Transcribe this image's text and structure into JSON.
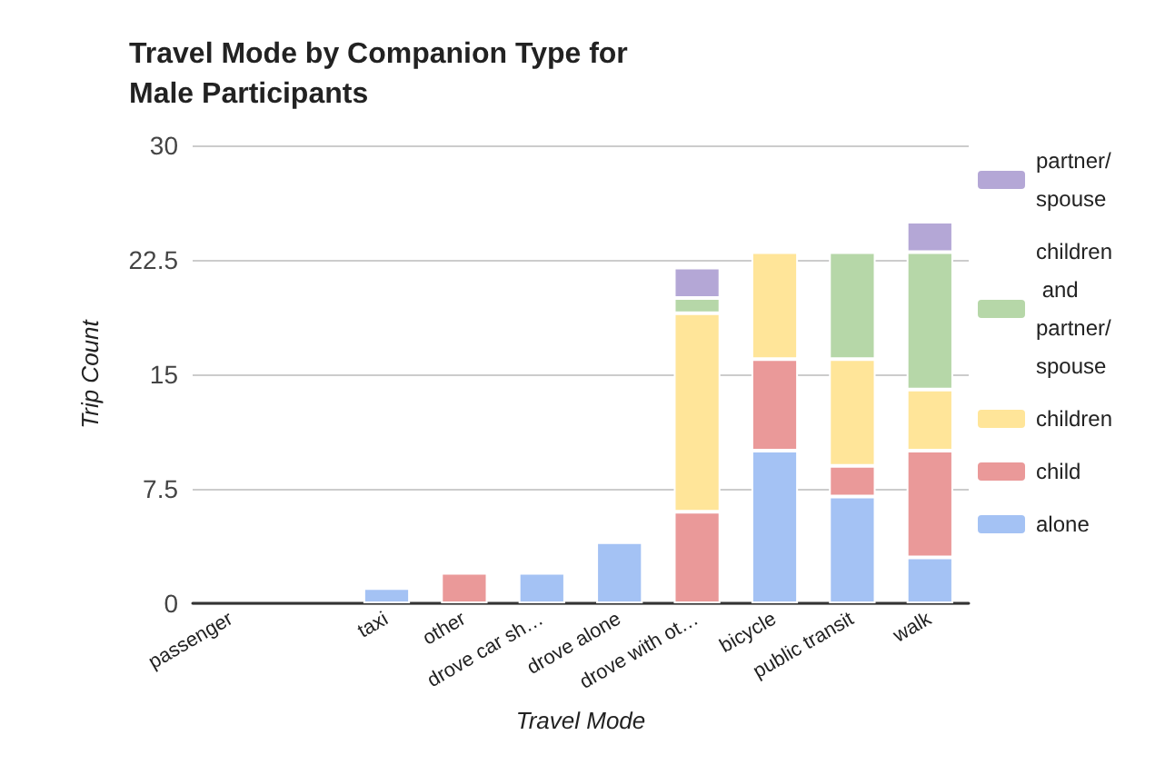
{
  "chart_data": {
    "type": "bar",
    "stacked": true,
    "title": "Travel Mode by Companion Type for Male Participants",
    "xlabel": "Travel Mode",
    "ylabel": "Trip Count",
    "categories": [
      "passenger",
      null,
      "taxi",
      "other",
      "drove car sh…",
      "drove alone",
      "drove with ot…",
      "bicycle",
      "public transit",
      "walk"
    ],
    "series": [
      {
        "name": "alone",
        "color": "#a4c2f4",
        "values": [
          0,
          0,
          1,
          0,
          2,
          4,
          0,
          10,
          7,
          3
        ]
      },
      {
        "name": "child",
        "color": "#ea9999",
        "values": [
          0,
          0,
          0,
          2,
          0,
          0,
          6,
          6,
          2,
          7
        ]
      },
      {
        "name": "children",
        "color": "#ffe599",
        "values": [
          0,
          0,
          0,
          0,
          0,
          0,
          13,
          7,
          7,
          4
        ]
      },
      {
        "name": "children and partner/spouse",
        "color": "#b6d7a8",
        "values": [
          0,
          0,
          0,
          0,
          0,
          0,
          1,
          0,
          7,
          9
        ]
      },
      {
        "name": "partner/spouse",
        "color": "#b4a7d6",
        "values": [
          0,
          0,
          0,
          0,
          0,
          0,
          2,
          0,
          0,
          2
        ]
      }
    ],
    "ylim": [
      0,
      30
    ],
    "yticks": [
      0,
      7.5,
      15,
      22.5,
      30
    ],
    "grid": "y",
    "legend": "right"
  }
}
